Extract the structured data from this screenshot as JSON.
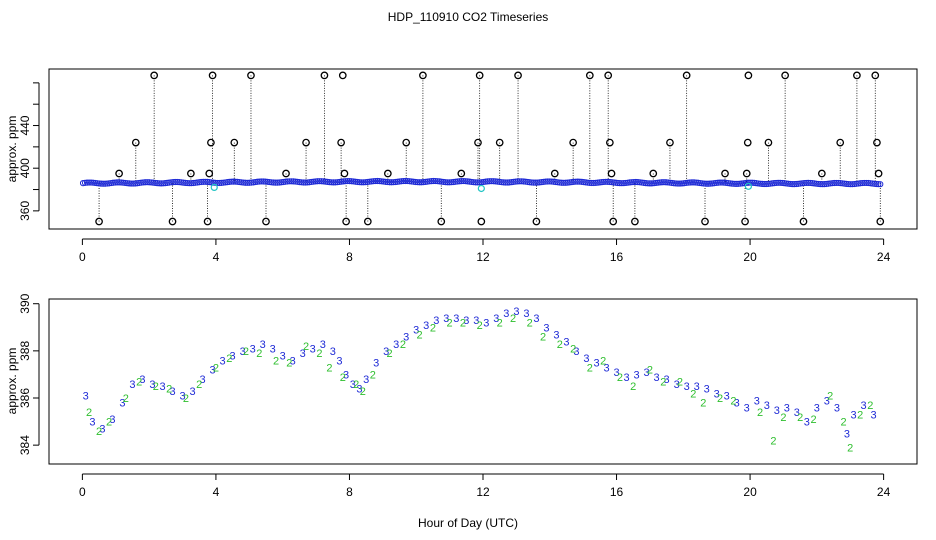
{
  "chart_data": [
    {
      "type": "scatter",
      "title": "HDP_110910  CO2 Timeseries",
      "xlabel": "",
      "ylabel": "approx. ppm",
      "xlim": [
        -1,
        25
      ],
      "ylim": [
        343,
        493
      ],
      "x_ticks": [
        0,
        4,
        8,
        12,
        16,
        20,
        24
      ],
      "y_ticks": [
        360,
        380,
        400,
        420,
        440,
        460,
        480
      ],
      "y_tick_labels": [
        "360",
        "",
        "400",
        "",
        "440",
        "",
        ""
      ],
      "series": [
        {
          "name": "blue",
          "color": "#1f2bd6",
          "values": "dense baseline near 386 ppm over hours 0-24"
        },
        {
          "name": "cyan",
          "color": "#22c4c4",
          "points": [
            [
              3.95,
              382
            ],
            [
              11.95,
              381
            ],
            [
              19.95,
              383
            ]
          ]
        },
        {
          "name": "outliers",
          "color": "#000000",
          "points": [
            [
              0.5,
              350
            ],
            [
              1.1,
              395
            ],
            [
              1.6,
              424
            ],
            [
              2.15,
              487
            ],
            [
              2.7,
              350
            ],
            [
              3.25,
              395
            ],
            [
              3.75,
              350
            ],
            [
              3.8,
              395
            ],
            [
              3.85,
              424
            ],
            [
              3.9,
              487
            ],
            [
              4.55,
              424
            ],
            [
              5.05,
              487
            ],
            [
              5.5,
              350
            ],
            [
              6.1,
              395
            ],
            [
              6.7,
              424
            ],
            [
              7.25,
              487
            ],
            [
              7.75,
              424
            ],
            [
              7.8,
              487
            ],
            [
              7.85,
              395
            ],
            [
              7.9,
              350
            ],
            [
              8.55,
              350
            ],
            [
              9.15,
              395
            ],
            [
              9.7,
              424
            ],
            [
              10.2,
              487
            ],
            [
              10.75,
              350
            ],
            [
              11.35,
              395
            ],
            [
              11.85,
              424
            ],
            [
              11.9,
              487
            ],
            [
              11.95,
              350
            ],
            [
              12.5,
              424
            ],
            [
              13.05,
              487
            ],
            [
              13.6,
              350
            ],
            [
              14.15,
              395
            ],
            [
              14.7,
              424
            ],
            [
              15.2,
              487
            ],
            [
              15.75,
              487
            ],
            [
              15.8,
              424
            ],
            [
              15.85,
              395
            ],
            [
              15.9,
              350
            ],
            [
              16.55,
              350
            ],
            [
              17.1,
              395
            ],
            [
              17.6,
              424
            ],
            [
              18.1,
              487
            ],
            [
              18.65,
              350
            ],
            [
              19.25,
              395
            ],
            [
              19.85,
              350
            ],
            [
              19.9,
              395
            ],
            [
              19.93,
              424
            ],
            [
              19.95,
              487
            ],
            [
              20.55,
              424
            ],
            [
              21.05,
              487
            ],
            [
              21.6,
              350
            ],
            [
              22.15,
              395
            ],
            [
              22.7,
              424
            ],
            [
              23.2,
              487
            ],
            [
              23.75,
              487
            ],
            [
              23.8,
              424
            ],
            [
              23.85,
              395
            ],
            [
              23.9,
              350
            ]
          ]
        }
      ]
    },
    {
      "type": "scatter",
      "title": "",
      "xlabel": "Hour of Day (UTC)",
      "ylabel": "approx. ppm",
      "xlim": [
        -1,
        25
      ],
      "ylim": [
        383.2,
        390.2
      ],
      "x_ticks": [
        0,
        4,
        8,
        12,
        16,
        20,
        24
      ],
      "y_ticks": [
        384,
        386,
        388,
        390
      ],
      "series": [
        {
          "name": "3",
          "marker": "3",
          "color": "#1f2bd6",
          "points": [
            [
              0.1,
              386.1
            ],
            [
              0.3,
              385.0
            ],
            [
              0.6,
              384.7
            ],
            [
              0.9,
              385.1
            ],
            [
              1.2,
              385.8
            ],
            [
              1.5,
              386.6
            ],
            [
              1.8,
              386.8
            ],
            [
              2.1,
              386.6
            ],
            [
              2.4,
              386.5
            ],
            [
              2.7,
              386.3
            ],
            [
              3.0,
              386.1
            ],
            [
              3.3,
              386.3
            ],
            [
              3.6,
              386.8
            ],
            [
              3.9,
              387.2
            ],
            [
              4.2,
              387.6
            ],
            [
              4.5,
              387.8
            ],
            [
              4.8,
              388.0
            ],
            [
              5.1,
              388.1
            ],
            [
              5.4,
              388.3
            ],
            [
              5.7,
              388.1
            ],
            [
              6.0,
              387.8
            ],
            [
              6.3,
              387.6
            ],
            [
              6.6,
              387.9
            ],
            [
              6.9,
              388.1
            ],
            [
              7.2,
              388.3
            ],
            [
              7.5,
              388.0
            ],
            [
              7.7,
              387.6
            ],
            [
              7.9,
              387.0
            ],
            [
              8.1,
              386.6
            ],
            [
              8.3,
              386.4
            ],
            [
              8.5,
              386.8
            ],
            [
              8.8,
              387.5
            ],
            [
              9.1,
              388.0
            ],
            [
              9.4,
              388.3
            ],
            [
              9.7,
              388.6
            ],
            [
              10.0,
              388.9
            ],
            [
              10.3,
              389.1
            ],
            [
              10.6,
              389.3
            ],
            [
              10.9,
              389.4
            ],
            [
              11.2,
              389.4
            ],
            [
              11.5,
              389.3
            ],
            [
              11.8,
              389.3
            ],
            [
              12.1,
              389.2
            ],
            [
              12.4,
              389.4
            ],
            [
              12.7,
              389.6
            ],
            [
              13.0,
              389.7
            ],
            [
              13.3,
              389.6
            ],
            [
              13.6,
              389.4
            ],
            [
              13.9,
              389.0
            ],
            [
              14.2,
              388.7
            ],
            [
              14.5,
              388.4
            ],
            [
              14.8,
              388.0
            ],
            [
              15.1,
              387.7
            ],
            [
              15.4,
              387.5
            ],
            [
              15.7,
              387.3
            ],
            [
              16.0,
              387.1
            ],
            [
              16.3,
              386.9
            ],
            [
              16.6,
              387.0
            ],
            [
              16.9,
              387.1
            ],
            [
              17.2,
              386.9
            ],
            [
              17.5,
              386.8
            ],
            [
              17.8,
              386.6
            ],
            [
              18.1,
              386.5
            ],
            [
              18.4,
              386.5
            ],
            [
              18.7,
              386.4
            ],
            [
              19.0,
              386.2
            ],
            [
              19.3,
              386.1
            ],
            [
              19.6,
              385.8
            ],
            [
              19.9,
              385.6
            ],
            [
              20.2,
              385.9
            ],
            [
              20.5,
              385.7
            ],
            [
              20.8,
              385.5
            ],
            [
              21.1,
              385.6
            ],
            [
              21.4,
              385.4
            ],
            [
              21.7,
              385.0
            ],
            [
              22.0,
              385.6
            ],
            [
              22.3,
              385.9
            ],
            [
              22.6,
              385.6
            ],
            [
              22.9,
              384.5
            ],
            [
              23.1,
              385.3
            ],
            [
              23.4,
              385.7
            ],
            [
              23.7,
              385.3
            ]
          ]
        },
        {
          "name": "2",
          "marker": "2",
          "color": "#2fbf2f",
          "points": [
            [
              0.2,
              385.4
            ],
            [
              0.5,
              384.6
            ],
            [
              0.8,
              385.0
            ],
            [
              1.3,
              386.0
            ],
            [
              1.7,
              386.7
            ],
            [
              2.2,
              386.5
            ],
            [
              2.6,
              386.4
            ],
            [
              3.1,
              386.0
            ],
            [
              3.5,
              386.6
            ],
            [
              4.0,
              387.3
            ],
            [
              4.4,
              387.7
            ],
            [
              4.9,
              388.0
            ],
            [
              5.3,
              387.9
            ],
            [
              5.8,
              387.6
            ],
            [
              6.2,
              387.5
            ],
            [
              6.7,
              388.2
            ],
            [
              7.1,
              387.9
            ],
            [
              7.4,
              387.3
            ],
            [
              7.8,
              386.9
            ],
            [
              8.2,
              386.6
            ],
            [
              8.4,
              386.3
            ],
            [
              8.7,
              387.0
            ],
            [
              9.2,
              387.9
            ],
            [
              9.6,
              388.3
            ],
            [
              10.1,
              388.7
            ],
            [
              10.5,
              389.0
            ],
            [
              11.0,
              389.2
            ],
            [
              11.4,
              389.2
            ],
            [
              11.9,
              389.1
            ],
            [
              12.5,
              389.2
            ],
            [
              12.9,
              389.4
            ],
            [
              13.4,
              389.2
            ],
            [
              13.8,
              388.6
            ],
            [
              14.3,
              388.3
            ],
            [
              14.7,
              388.1
            ],
            [
              15.2,
              387.3
            ],
            [
              15.6,
              387.6
            ],
            [
              16.1,
              386.9
            ],
            [
              16.5,
              386.5
            ],
            [
              17.0,
              387.2
            ],
            [
              17.4,
              386.7
            ],
            [
              17.9,
              386.7
            ],
            [
              18.3,
              386.2
            ],
            [
              18.6,
              385.8
            ],
            [
              19.1,
              386.0
            ],
            [
              19.5,
              385.9
            ],
            [
              20.3,
              385.4
            ],
            [
              20.7,
              384.2
            ],
            [
              21.0,
              385.2
            ],
            [
              21.5,
              385.2
            ],
            [
              21.9,
              385.1
            ],
            [
              22.4,
              386.1
            ],
            [
              22.8,
              385.0
            ],
            [
              23.0,
              383.9
            ],
            [
              23.3,
              385.3
            ],
            [
              23.6,
              385.7
            ]
          ]
        }
      ]
    }
  ]
}
